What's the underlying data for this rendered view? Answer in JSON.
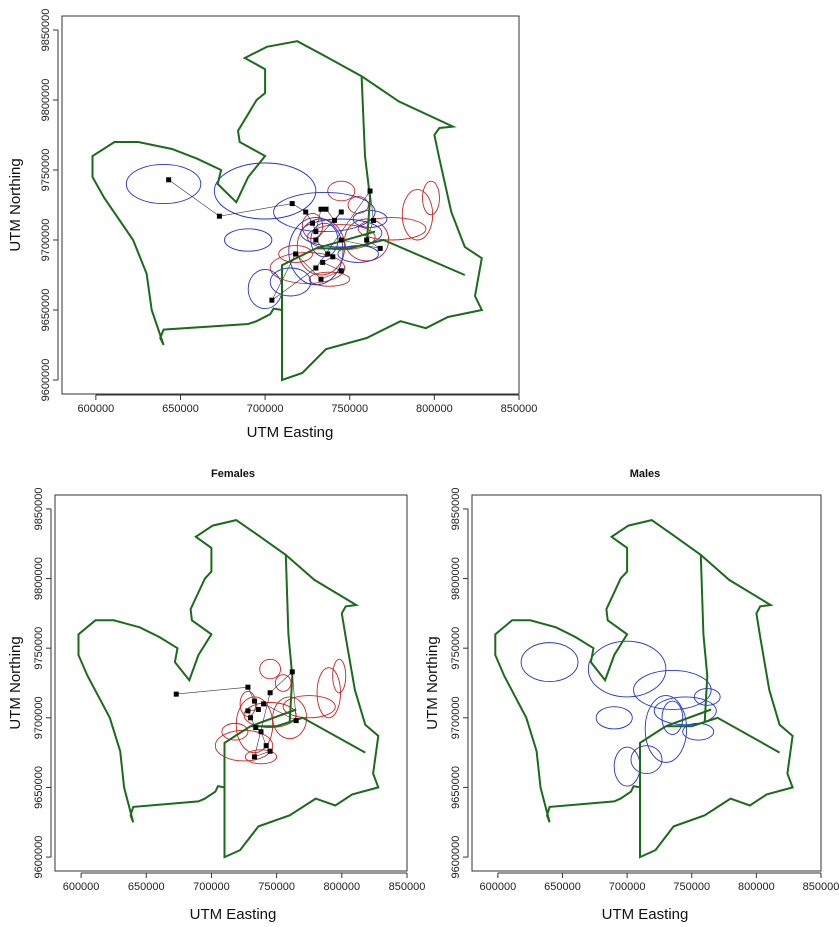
{
  "chart_data": [
    {
      "type": "map",
      "title": "",
      "xlabel": "UTM Easting",
      "ylabel": "UTM Northing",
      "xlim": [
        580000,
        850000
      ],
      "ylim": [
        9590000,
        9860000
      ],
      "xticks": [
        "600000",
        "650000",
        "700000",
        "750000",
        "800000",
        "850000"
      ],
      "yticks": [
        "9600000",
        "9650000",
        "9700000",
        "9750000",
        "9800000",
        "9850000"
      ],
      "boundary_color": "#1a6b1a",
      "series": [
        {
          "color": "#cc2222"
        },
        {
          "color": "#2233cc"
        }
      ],
      "locations": [
        [
          643000,
          9743000
        ],
        [
          673000,
          9717000
        ],
        [
          716000,
          9726000
        ],
        [
          724000,
          9720000
        ],
        [
          728000,
          9712000
        ],
        [
          730000,
          9706000
        ],
        [
          733000,
          9722000
        ],
        [
          736000,
          9722000
        ],
        [
          741000,
          9714000
        ],
        [
          745000,
          9720000
        ],
        [
          730000,
          9700000
        ],
        [
          737000,
          9690000
        ],
        [
          740000,
          9688000
        ],
        [
          734000,
          9684000
        ],
        [
          745000,
          9678000
        ],
        [
          733000,
          9672000
        ],
        [
          718000,
          9690000
        ],
        [
          704000,
          9657000
        ],
        [
          730000,
          9680000
        ],
        [
          762000,
          9735000
        ],
        [
          764000,
          9714000
        ],
        [
          760000,
          9700000
        ],
        [
          768000,
          9694000
        ],
        [
          745000,
          9700000
        ]
      ]
    },
    {
      "type": "map",
      "title": "Females",
      "xlabel": "UTM Easting",
      "ylabel": "UTM Northing",
      "xlim": [
        580000,
        850000
      ],
      "ylim": [
        9590000,
        9860000
      ],
      "xticks": [
        "600000",
        "650000",
        "700000",
        "750000",
        "800000",
        "850000"
      ],
      "yticks": [
        "9600000",
        "9650000",
        "9700000",
        "9750000",
        "9800000",
        "9850000"
      ],
      "boundary_color": "#1a6b1a",
      "series": [
        {
          "color": "#cc2222"
        }
      ],
      "locations": [
        [
          673000,
          9717000
        ],
        [
          728000,
          9722000
        ],
        [
          733000,
          9712000
        ],
        [
          736000,
          9706000
        ],
        [
          728000,
          9705000
        ],
        [
          730000,
          9700000
        ],
        [
          734000,
          9693000
        ],
        [
          738000,
          9690000
        ],
        [
          742000,
          9680000
        ],
        [
          745000,
          9676000
        ],
        [
          733000,
          9672000
        ],
        [
          745000,
          9718000
        ],
        [
          762000,
          9733000
        ],
        [
          765000,
          9698000
        ],
        [
          740000,
          9710000
        ]
      ]
    },
    {
      "type": "map",
      "title": "Males",
      "xlabel": "UTM Easting",
      "ylabel": "UTM Northing",
      "xlim": [
        580000,
        850000
      ],
      "ylim": [
        9590000,
        9860000
      ],
      "xticks": [
        "600000",
        "650000",
        "700000",
        "750000",
        "800000",
        "850000"
      ],
      "yticks": [
        "9600000",
        "9650000",
        "9700000",
        "9750000",
        "9800000",
        "9850000"
      ],
      "boundary_color": "#1a6b1a",
      "series": [
        {
          "color": "#2233cc"
        }
      ],
      "locations": []
    }
  ]
}
